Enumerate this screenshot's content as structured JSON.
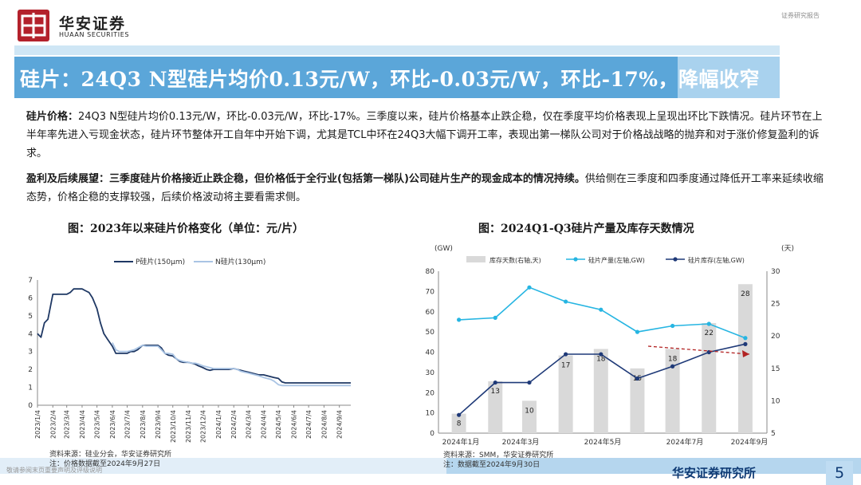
{
  "header": {
    "logo_cn": "华安证券",
    "logo_en": "HUAAN SECURITIES",
    "doc_type": "证券研究报告",
    "title": "硅片：24Q3 N型硅片均价0.13元/W，环比-0.03元/W，环比-17%，降幅收窄"
  },
  "body": {
    "p1_bold": "硅片价格：",
    "p1_text": "24Q3 N型硅片均价0.13元/W，环比-0.03元/W，环比-17%。三季度以来，硅片价格基本止跌企稳，仅在季度平均价格表现上呈现出环比下跌情况。硅片环节在上半年率先进入亏现金状态，硅片环节整体开工自年中开始下调，尤其是TCL中环在24Q3大幅下调开工率，表现出第一梯队公司对于价格战战略的抛弃和对于涨价修复盈利的诉求。",
    "p2_bold": "盈利及后续展望：三季度硅片价格接近止跌企稳，但价格低于全行业(包括第一梯队)公司硅片生产的现金成本的情况持续。",
    "p2_text": "供给侧在三季度和四季度通过降低开工率来延续收缩态势，价格企稳的支撑较强，后续价格波动将主要看需求侧。"
  },
  "chart1": {
    "title": "图：2023年以来硅片价格变化（单位：元/片）",
    "source": "资料来源：硅业分会，华安证券研究所",
    "note": "注：价格数据截至2024年9月27日"
  },
  "chart2": {
    "title": "图：2024Q1-Q3硅片产量及库存天数情况",
    "source": "资料来源：SMM，华安证券研究所",
    "note": "注：数据截至2024年9月30日"
  },
  "footer": {
    "disclaimer": "敬请参阅末页重要声明及评级说明",
    "brand": "华安证券研究所",
    "page": "5"
  },
  "colors": {
    "p_series": "#1f3864",
    "n_series": "#a9c4e4",
    "output_line": "#26b5e2",
    "inventory_line": "#1f3a78",
    "bars": "#d9d9d9",
    "arrow": "#b22222",
    "header_bar": "#5ba6d9"
  },
  "chart_data": [
    {
      "type": "line",
      "title": "图：2023年以来硅片价格变化（单位：元/片）",
      "ylim": [
        0,
        7
      ],
      "yticks": [
        0,
        1,
        2,
        3,
        4,
        5,
        6,
        7
      ],
      "xticks": [
        "2023/1/4",
        "2023/2/4",
        "2023/3/4",
        "2023/4/4",
        "2023/5/4",
        "2023/6/4",
        "2023/7/4",
        "2023/8/4",
        "2023/9/4",
        "2023/10/4",
        "2023/11/4",
        "2023/12/4",
        "2024/1/4",
        "2024/2/4",
        "2024/3/4",
        "2024/4/4",
        "2024/5/4",
        "2024/6/4",
        "2024/7/4",
        "2024/8/4",
        "2024/9/4"
      ],
      "legend_position": "top",
      "series": [
        {
          "name": "P硅片(150μm)",
          "x": [
            "2023/1/4",
            "2023/1/11",
            "2023/1/18",
            "2023/1/25",
            "2023/2/4",
            "2023/2/11",
            "2023/2/18",
            "2023/2/25",
            "2023/3/4",
            "2023/3/11",
            "2023/3/18",
            "2023/3/25",
            "2023/4/4",
            "2023/4/11",
            "2023/4/18",
            "2023/4/25",
            "2023/5/4",
            "2023/5/11",
            "2023/5/18",
            "2023/5/25",
            "2023/6/4",
            "2023/6/11",
            "2023/6/18",
            "2023/6/25",
            "2023/7/4",
            "2023/7/11",
            "2023/7/18",
            "2023/7/25",
            "2023/8/4",
            "2023/8/11",
            "2023/8/18",
            "2023/8/25",
            "2023/9/4",
            "2023/9/11",
            "2023/9/18",
            "2023/9/25",
            "2023/10/4",
            "2023/10/11",
            "2023/10/18",
            "2023/10/25",
            "2023/11/4",
            "2023/11/11",
            "2023/11/18",
            "2023/11/25",
            "2023/12/4",
            "2023/12/11",
            "2023/12/18",
            "2023/12/25",
            "2024/1/4",
            "2024/1/11",
            "2024/1/18",
            "2024/1/25",
            "2024/2/4",
            "2024/2/11",
            "2024/2/18",
            "2024/2/25",
            "2024/3/4",
            "2024/3/11",
            "2024/3/18",
            "2024/3/25",
            "2024/4/4",
            "2024/4/11",
            "2024/4/18",
            "2024/4/25",
            "2024/5/4",
            "2024/5/11",
            "2024/5/18",
            "2024/5/25",
            "2024/6/4",
            "2024/6/11",
            "2024/6/18",
            "2024/6/25",
            "2024/7/4",
            "2024/7/11",
            "2024/7/18",
            "2024/7/25",
            "2024/8/4",
            "2024/8/11",
            "2024/8/18",
            "2024/8/25",
            "2024/9/4",
            "2024/9/11",
            "2024/9/18",
            "2024/9/27"
          ],
          "values": [
            4.0,
            3.8,
            4.6,
            4.8,
            6.2,
            6.2,
            6.2,
            6.2,
            6.2,
            6.3,
            6.5,
            6.5,
            6.5,
            6.4,
            6.3,
            6.0,
            5.4,
            4.6,
            4.0,
            3.7,
            3.3,
            2.9,
            2.9,
            2.9,
            2.9,
            3.0,
            3.0,
            3.1,
            3.35,
            3.35,
            3.35,
            3.35,
            3.35,
            3.2,
            2.9,
            2.8,
            2.75,
            2.6,
            2.45,
            2.4,
            2.4,
            2.35,
            2.3,
            2.2,
            2.1,
            2.0,
            1.95,
            2.0,
            2.0,
            2.0,
            2.0,
            2.0,
            2.05,
            2.0,
            1.95,
            1.9,
            1.85,
            1.8,
            1.75,
            1.7,
            1.7,
            1.65,
            1.6,
            1.55,
            1.5,
            1.3,
            1.25,
            1.25,
            1.25,
            1.25,
            1.25,
            1.25,
            1.25,
            1.25,
            1.25,
            1.25,
            1.25,
            1.25,
            1.25,
            1.25,
            1.25,
            1.25,
            1.25,
            1.25
          ]
        },
        {
          "name": "N硅片(130μm)",
          "x": [
            "2023/6/4",
            "2023/6/11",
            "2023/6/18",
            "2023/6/25",
            "2023/7/4",
            "2023/7/11",
            "2023/7/18",
            "2023/7/25",
            "2023/8/4",
            "2023/8/11",
            "2023/8/18",
            "2023/8/25",
            "2023/9/4",
            "2023/9/11",
            "2023/9/18",
            "2023/9/25",
            "2023/10/4",
            "2023/10/11",
            "2023/10/18",
            "2023/10/25",
            "2023/11/4",
            "2023/11/11",
            "2023/11/18",
            "2023/11/25",
            "2023/12/4",
            "2023/12/11",
            "2023/12/18",
            "2023/12/25",
            "2024/1/4",
            "2024/1/11",
            "2024/1/18",
            "2024/1/25",
            "2024/2/4",
            "2024/2/11",
            "2024/2/18",
            "2024/2/25",
            "2024/3/4",
            "2024/3/11",
            "2024/3/18",
            "2024/3/25",
            "2024/4/4",
            "2024/4/11",
            "2024/4/18",
            "2024/4/25",
            "2024/5/4",
            "2024/5/11",
            "2024/5/18",
            "2024/5/25",
            "2024/6/4",
            "2024/6/11",
            "2024/6/18",
            "2024/6/25",
            "2024/7/4",
            "2024/7/11",
            "2024/7/18",
            "2024/7/25",
            "2024/8/4",
            "2024/8/11",
            "2024/8/18",
            "2024/8/25",
            "2024/9/4",
            "2024/9/11",
            "2024/9/18",
            "2024/9/27"
          ],
          "values": [
            3.5,
            3.1,
            3.0,
            3.0,
            3.0,
            3.05,
            3.1,
            3.2,
            3.35,
            3.3,
            3.3,
            3.3,
            3.3,
            3.1,
            2.9,
            2.9,
            2.85,
            2.6,
            2.5,
            2.45,
            2.4,
            2.35,
            2.35,
            2.3,
            2.2,
            2.15,
            2.1,
            2.05,
            2.05,
            2.05,
            2.05,
            2.05,
            2.05,
            2.0,
            1.9,
            1.85,
            1.8,
            1.75,
            1.7,
            1.65,
            1.55,
            1.5,
            1.45,
            1.35,
            1.15,
            1.1,
            1.1,
            1.1,
            1.1,
            1.1,
            1.1,
            1.1,
            1.1,
            1.1,
            1.1,
            1.1,
            1.1,
            1.1,
            1.1,
            1.1,
            1.1,
            1.1,
            1.1,
            1.1
          ]
        }
      ]
    },
    {
      "type": "bar+line",
      "title": "图：2024Q1-Q3硅片产量及库存天数情况",
      "y_left_label": "(GW)",
      "y_right_label": "(天)",
      "y_left_lim": [
        0,
        80
      ],
      "y_right_lim": [
        5,
        30
      ],
      "y_left_ticks": [
        0,
        10,
        20,
        30,
        40,
        50,
        60,
        70,
        80
      ],
      "y_right_ticks": [
        5,
        10,
        15,
        20,
        25,
        30
      ],
      "x": [
        "2024/1/15",
        "2024/1/31",
        "2024/2/15",
        "2024/2/29",
        "2024/3/15",
        "2024/3/31",
        "2024/4/15",
        "2024/4/30",
        "2024/5/15",
        "2024/5/31",
        "2024/6/15",
        "2024/6/30",
        "2024/7/15",
        "2024/7/31",
        "2024/8/15",
        "2024/8/31",
        "2024/9/15",
        "2024/9/30"
      ],
      "x_tick_labels": [
        "2024年1月",
        "2024年3月",
        "2024年5月",
        "2024年7月",
        "2024年9月"
      ],
      "legend_position": "top",
      "series": [
        {
          "name": "库存天数(右轴,天)",
          "type": "bar",
          "axis": "right",
          "points": [
            [
              "2024/1/15",
              8
            ],
            [
              "2024/2/15",
              13
            ],
            [
              "2024/3/15",
              10
            ],
            [
              "2024/4/15",
              17
            ],
            [
              "2024/5/15",
              18
            ],
            [
              "2024/6/15",
              15
            ],
            [
              "2024/7/15",
              18
            ],
            [
              "2024/8/15",
              22
            ],
            [
              "2024/9/15",
              28
            ]
          ],
          "labels": [
            "8",
            "13",
            "10",
            "17",
            "18",
            "15",
            "18",
            "22",
            "28"
          ]
        },
        {
          "name": "硅片产量(左轴,GW)",
          "type": "line",
          "axis": "left",
          "points": [
            [
              "2024/1/15",
              56
            ],
            [
              "2024/2/15",
              57
            ],
            [
              "2024/3/15",
              72
            ],
            [
              "2024/4/15",
              65
            ],
            [
              "2024/5/15",
              61
            ],
            [
              "2024/6/15",
              50
            ],
            [
              "2024/7/15",
              53
            ],
            [
              "2024/8/15",
              54
            ],
            [
              "2024/9/15",
              47
            ]
          ]
        },
        {
          "name": "硅片库存(左轴,GW)",
          "type": "line",
          "axis": "left",
          "points": [
            [
              "2024/1/15",
              9
            ],
            [
              "2024/2/15",
              25
            ],
            [
              "2024/3/15",
              25
            ],
            [
              "2024/4/15",
              39
            ],
            [
              "2024/5/15",
              39
            ],
            [
              "2024/6/15",
              27
            ],
            [
              "2024/7/15",
              33
            ],
            [
              "2024/8/15",
              40
            ],
            [
              "2024/9/15",
              44
            ]
          ]
        }
      ]
    }
  ]
}
